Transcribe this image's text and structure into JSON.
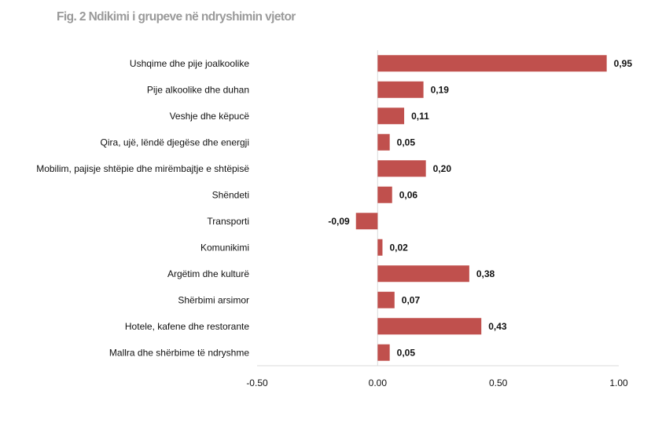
{
  "title": "Fig. 2 Ndikimi i grupeve në ndryshimin vjetor",
  "chart_data": {
    "type": "bar",
    "orientation": "horizontal",
    "title": "Fig. 2 Ndikimi i grupeve në ndryshimin vjetor",
    "categories": [
      "Ushqime dhe pije joalkoolike",
      "Pije alkoolike dhe duhan",
      "Veshje dhe këpucë",
      "Qira, ujë, lëndë djegëse dhe energji",
      "Mobilim, pajisje shtëpie dhe mirëmbajtje e shtëpisë",
      "Shëndeti",
      "Transporti",
      "Komunikimi",
      "Argëtim dhe kulturë",
      "Shërbimi arsimor",
      "Hotele, kafene dhe restorante",
      "Mallra dhe shërbime të ndryshme"
    ],
    "values": [
      0.95,
      0.19,
      0.11,
      0.05,
      0.2,
      0.06,
      -0.09,
      0.02,
      0.38,
      0.07,
      0.43,
      0.05
    ],
    "value_labels": [
      "0,95",
      "0,19",
      "0,11",
      "0,05",
      "0,20",
      "0,06",
      "-0,09",
      "0,02",
      "0,38",
      "0,07",
      "0,43",
      "0,05"
    ],
    "xlim": [
      -0.5,
      1.0
    ],
    "xticks": [
      -0.5,
      0.0,
      0.5,
      1.0
    ],
    "xtick_labels": [
      "-0.50",
      "0.00",
      "0.50",
      "1.00"
    ],
    "xlabel": "",
    "ylabel": "",
    "grid": false,
    "legend": "none",
    "bar_color": "#c0504d",
    "axis_color": "#d9d9d9"
  }
}
